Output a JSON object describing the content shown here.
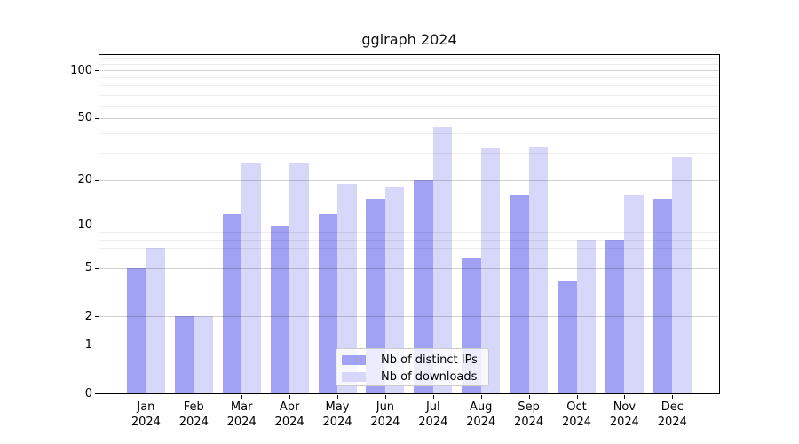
{
  "title": "ggiraph 2024",
  "chart_data": {
    "type": "bar",
    "title": "ggiraph 2024",
    "categories": [
      {
        "month": "Jan",
        "year": "2024"
      },
      {
        "month": "Feb",
        "year": "2024"
      },
      {
        "month": "Mar",
        "year": "2024"
      },
      {
        "month": "Apr",
        "year": "2024"
      },
      {
        "month": "May",
        "year": "2024"
      },
      {
        "month": "Jun",
        "year": "2024"
      },
      {
        "month": "Jul",
        "year": "2024"
      },
      {
        "month": "Aug",
        "year": "2024"
      },
      {
        "month": "Sep",
        "year": "2024"
      },
      {
        "month": "Oct",
        "year": "2024"
      },
      {
        "month": "Nov",
        "year": "2024"
      },
      {
        "month": "Dec",
        "year": "2024"
      }
    ],
    "series": [
      {
        "name": "Nb of distinct IPs",
        "color": "#a2a2f5",
        "values": [
          5,
          2,
          12,
          10,
          12,
          15,
          20,
          6,
          16,
          4,
          8,
          15
        ]
      },
      {
        "name": "Nb of downloads",
        "color": "#d7d8f9",
        "values": [
          7,
          2,
          26,
          26,
          19,
          18,
          44,
          32,
          33,
          8,
          16,
          28
        ]
      }
    ],
    "xlabel": "",
    "ylabel": "",
    "yscale": "log1p",
    "ylim": [
      0,
      124
    ],
    "y_ticks": [
      0,
      1,
      2,
      5,
      10,
      20,
      50,
      100
    ],
    "y_minor_gridlines": [
      3,
      4,
      6,
      7,
      8,
      9,
      30,
      40,
      60,
      70,
      80,
      90,
      110,
      120
    ],
    "grid": "on",
    "legend_position": "lower center"
  }
}
